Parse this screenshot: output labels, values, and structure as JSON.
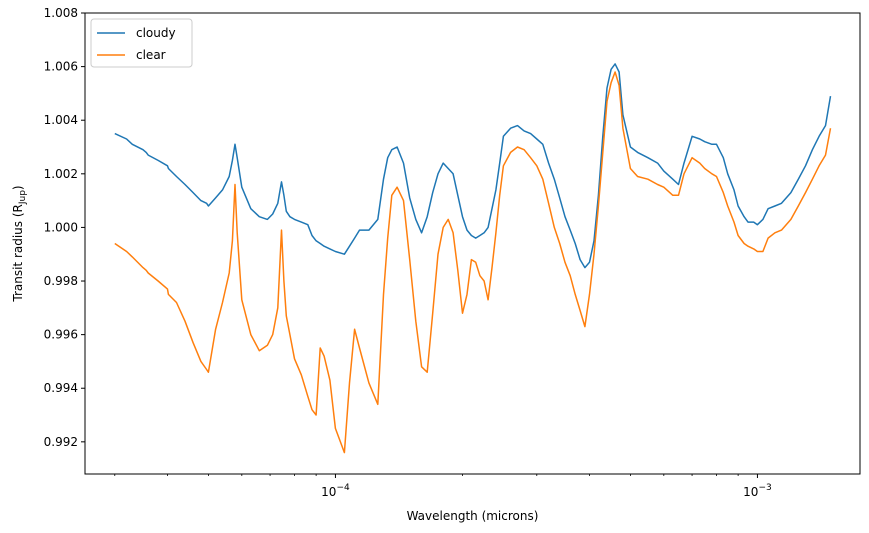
{
  "chart_data": {
    "type": "line",
    "title": "",
    "xlabel": "Wavelength (microns)",
    "ylabel_main": "Transit radius (R",
    "ylabel_sub": "Jup",
    "ylabel_close": ")",
    "xscale": "log",
    "xlim": [
      2.55e-05,
      0.00175
    ],
    "ylim": [
      0.9908,
      1.008
    ],
    "legend_location": "upper-left",
    "grid": false,
    "yticks": [
      {
        "value": 0.992,
        "label": "0.992"
      },
      {
        "value": 0.994,
        "label": "0.994"
      },
      {
        "value": 0.996,
        "label": "0.996"
      },
      {
        "value": 0.998,
        "label": "0.998"
      },
      {
        "value": 1.0,
        "label": "1.000"
      },
      {
        "value": 1.002,
        "label": "1.002"
      },
      {
        "value": 1.004,
        "label": "1.004"
      },
      {
        "value": 1.006,
        "label": "1.006"
      },
      {
        "value": 1.008,
        "label": "1.008"
      }
    ],
    "xticks_major": [
      {
        "value": 0.0001,
        "base": "10",
        "exp": "−4"
      },
      {
        "value": 0.001,
        "base": "10",
        "exp": "−3"
      }
    ],
    "series": [
      {
        "name": "cloudy",
        "color": "#1f77b4",
        "x": [
          3e-05,
          3.2e-05,
          3.3e-05,
          3.5e-05,
          3.56e-05,
          3.6e-05,
          3.8e-05,
          4e-05,
          4.02e-05,
          4.2e-05,
          4.4e-05,
          4.6e-05,
          4.8e-05,
          4.95e-05,
          5e-05,
          5.2e-05,
          5.4e-05,
          5.6e-05,
          5.7e-05,
          5.78e-05,
          5.85e-05,
          6e-05,
          6.3e-05,
          6.6e-05,
          6.9e-05,
          7.1e-05,
          7.3e-05,
          7.45e-05,
          7.55e-05,
          7.65e-05,
          7.8e-05,
          8e-05,
          8.3e-05,
          8.6e-05,
          8.8e-05,
          9e-05,
          9.2e-05,
          9.4e-05,
          9.7e-05,
          0.0001,
          0.000105,
          0.000108,
          0.000111,
          0.000114,
          0.00012,
          0.000126,
          0.00013,
          0.000133,
          0.000136,
          0.00014,
          0.000145,
          0.00015,
          0.000155,
          0.00016,
          0.000165,
          0.00017,
          0.000175,
          0.00018,
          0.000185,
          0.00019,
          0.000195,
          0.0002,
          0.000205,
          0.00021,
          0.000215,
          0.00022,
          0.000225,
          0.00023,
          0.000235,
          0.00024,
          0.000245,
          0.00025,
          0.00026,
          0.00027,
          0.00028,
          0.00029,
          0.0003,
          0.00031,
          0.00032,
          0.00033,
          0.00034,
          0.00035,
          0.00036,
          0.00037,
          0.00038,
          0.00039,
          0.0004,
          0.00041,
          0.00042,
          0.00043,
          0.00044,
          0.00045,
          0.00046,
          0.00047,
          0.00048,
          0.0005,
          0.00052,
          0.00055,
          0.00058,
          0.0006,
          0.00063,
          0.00065,
          0.00067,
          0.0007,
          0.00073,
          0.00075,
          0.00078,
          0.0008,
          0.00083,
          0.00085,
          0.00088,
          0.0009,
          0.00093,
          0.00095,
          0.00098,
          0.001,
          0.00103,
          0.00106,
          0.0011,
          0.00114,
          0.0012,
          0.00125,
          0.0013,
          0.00135,
          0.0014,
          0.00145,
          0.00149
        ],
        "y": [
          1.0035,
          1.0033,
          1.0031,
          1.0029,
          1.0028,
          1.0027,
          1.0025,
          1.0023,
          1.0022,
          1.0019,
          1.0016,
          1.0013,
          1.001,
          1.0009,
          1.0008,
          1.0011,
          1.0014,
          1.0019,
          1.0025,
          1.0031,
          1.0026,
          1.0015,
          1.0007,
          1.0004,
          1.0003,
          1.0005,
          1.0009,
          1.0017,
          1.0012,
          1.0006,
          1.0004,
          1.0003,
          1.0002,
          1.0001,
          0.9997,
          0.9995,
          0.9994,
          0.9993,
          0.9992,
          0.9991,
          0.999,
          0.9993,
          0.9996,
          0.9999,
          0.9999,
          1.0003,
          1.0018,
          1.0026,
          1.0029,
          1.003,
          1.0024,
          1.0011,
          1.0003,
          0.9998,
          1.0004,
          1.0013,
          1.002,
          1.0024,
          1.0022,
          1.002,
          1.0012,
          1.0004,
          0.9999,
          0.9997,
          0.9996,
          0.9997,
          0.9998,
          1.0,
          1.0007,
          1.0014,
          1.0024,
          1.0034,
          1.0037,
          1.0038,
          1.0036,
          1.0035,
          1.0033,
          1.0031,
          1.0024,
          1.0018,
          1.0011,
          1.0004,
          0.9999,
          0.9994,
          0.9988,
          0.9985,
          0.9987,
          0.9995,
          1.0012,
          1.0034,
          1.0052,
          1.0059,
          1.0061,
          1.0058,
          1.0042,
          1.003,
          1.0028,
          1.0026,
          1.0024,
          1.0021,
          1.0018,
          1.0016,
          1.0024,
          1.0034,
          1.0033,
          1.0032,
          1.0031,
          1.0031,
          1.0026,
          1.002,
          1.0014,
          1.0008,
          1.0004,
          1.0002,
          1.0002,
          1.0001,
          1.0003,
          1.0007,
          1.0008,
          1.0009,
          1.0013,
          1.0018,
          1.0023,
          1.0029,
          1.0034,
          1.0038,
          1.0049
        ]
      },
      {
        "name": "clear",
        "color": "#ff7f0e",
        "x": [
          3e-05,
          3.2e-05,
          3.3e-05,
          3.5e-05,
          3.56e-05,
          3.6e-05,
          3.8e-05,
          4e-05,
          4.02e-05,
          4.2e-05,
          4.4e-05,
          4.6e-05,
          4.8e-05,
          4.95e-05,
          5e-05,
          5.2e-05,
          5.4e-05,
          5.6e-05,
          5.7e-05,
          5.78e-05,
          5.85e-05,
          6e-05,
          6.3e-05,
          6.6e-05,
          6.9e-05,
          7.1e-05,
          7.3e-05,
          7.45e-05,
          7.55e-05,
          7.65e-05,
          7.8e-05,
          8e-05,
          8.3e-05,
          8.6e-05,
          8.8e-05,
          9e-05,
          9.2e-05,
          9.4e-05,
          9.7e-05,
          0.0001,
          0.000105,
          0.000108,
          0.000111,
          0.000114,
          0.00012,
          0.000126,
          0.00013,
          0.000133,
          0.000136,
          0.00014,
          0.000145,
          0.00015,
          0.000155,
          0.00016,
          0.000165,
          0.00017,
          0.000175,
          0.00018,
          0.000185,
          0.00019,
          0.000195,
          0.0002,
          0.000205,
          0.00021,
          0.000215,
          0.00022,
          0.000225,
          0.00023,
          0.000235,
          0.00024,
          0.000245,
          0.00025,
          0.00026,
          0.00027,
          0.00028,
          0.00029,
          0.0003,
          0.00031,
          0.00032,
          0.00033,
          0.00034,
          0.00035,
          0.00036,
          0.00037,
          0.00038,
          0.00039,
          0.0004,
          0.00041,
          0.00042,
          0.00043,
          0.00044,
          0.00045,
          0.00046,
          0.00047,
          0.00048,
          0.0005,
          0.00052,
          0.00055,
          0.00058,
          0.0006,
          0.00063,
          0.00065,
          0.00067,
          0.0007,
          0.00073,
          0.00075,
          0.00078,
          0.0008,
          0.00083,
          0.00085,
          0.00088,
          0.0009,
          0.00093,
          0.00095,
          0.00098,
          0.001,
          0.00103,
          0.00106,
          0.0011,
          0.00114,
          0.0012,
          0.00125,
          0.0013,
          0.00135,
          0.0014,
          0.00145,
          0.00149
        ],
        "y": [
          0.9994,
          0.9991,
          0.9989,
          0.9985,
          0.9984,
          0.9983,
          0.998,
          0.9977,
          0.9975,
          0.9972,
          0.9965,
          0.9957,
          0.995,
          0.9947,
          0.9946,
          0.9962,
          0.9972,
          0.9983,
          0.9995,
          1.0016,
          0.9998,
          0.9973,
          0.996,
          0.9954,
          0.9956,
          0.996,
          0.997,
          0.9999,
          0.998,
          0.9967,
          0.996,
          0.9951,
          0.9945,
          0.9937,
          0.9932,
          0.993,
          0.9955,
          0.9952,
          0.9943,
          0.9925,
          0.9916,
          0.9942,
          0.9962,
          0.9955,
          0.9942,
          0.9934,
          0.9975,
          0.9996,
          1.0012,
          1.0015,
          1.001,
          0.9988,
          0.9965,
          0.9948,
          0.9946,
          0.9968,
          0.999,
          1.0,
          1.0003,
          0.9998,
          0.9984,
          0.9968,
          0.9975,
          0.9988,
          0.9987,
          0.9982,
          0.998,
          0.9973,
          0.9985,
          0.9998,
          1.0012,
          1.0023,
          1.0028,
          1.003,
          1.0029,
          1.0026,
          1.0023,
          1.0018,
          1.0009,
          1.0,
          0.9994,
          0.9987,
          0.9982,
          0.9975,
          0.9969,
          0.9963,
          0.9975,
          0.999,
          1.0008,
          1.0028,
          1.0047,
          1.0054,
          1.0058,
          1.0053,
          1.0037,
          1.0022,
          1.0019,
          1.0018,
          1.0016,
          1.0015,
          1.0012,
          1.0012,
          1.002,
          1.0026,
          1.0024,
          1.0022,
          1.002,
          1.0019,
          1.0013,
          1.0008,
          1.0002,
          0.9997,
          0.9994,
          0.9993,
          0.9992,
          0.9991,
          0.9991,
          0.9996,
          0.9998,
          0.9999,
          1.0003,
          1.0008,
          1.0013,
          1.0018,
          1.0023,
          1.0027,
          1.0037
        ]
      }
    ]
  }
}
